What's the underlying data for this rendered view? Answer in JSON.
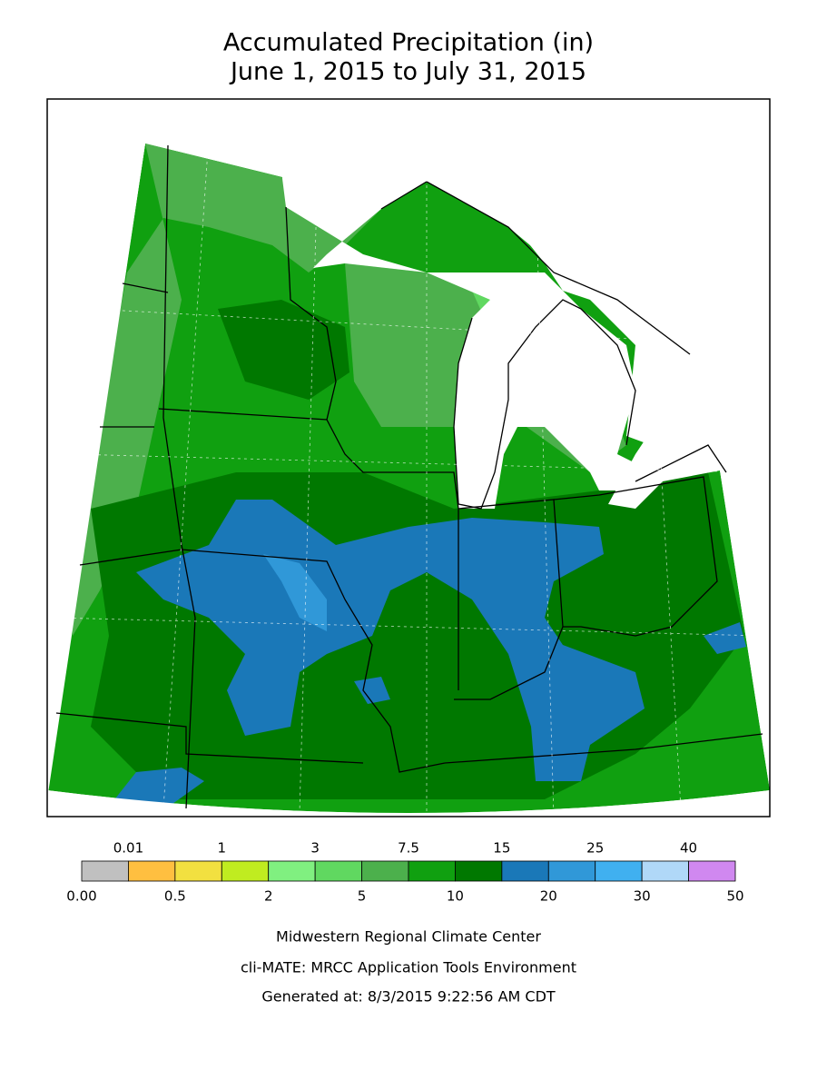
{
  "title": [
    "Accumulated Precipitation (in)",
    "June 1, 2015 to July 31, 2015"
  ],
  "legend": {
    "bounds": [
      {
        "value": 0,
        "label": "0.00"
      },
      0.01,
      0.5,
      1,
      2,
      3,
      5,
      7.5,
      10,
      15,
      20,
      25,
      30,
      40,
      50
    ],
    "colors": [
      "#c0c0c0",
      "#ffbf40",
      "#f2e040",
      "#c0ec20",
      "#80f080",
      "#60d860",
      "#4cb04c",
      "#10a010",
      "#007800",
      "#1a78b8",
      "#3098d8",
      "#40b0f0",
      "#b0d8f8",
      "#d088f0"
    ]
  },
  "footer": [
    "Midwestern Regional Climate Center",
    "cli-MATE: MRCC Application Tools Environment",
    "Generated at: 8/3/2015 9:22:56 AM CDT"
  ]
}
